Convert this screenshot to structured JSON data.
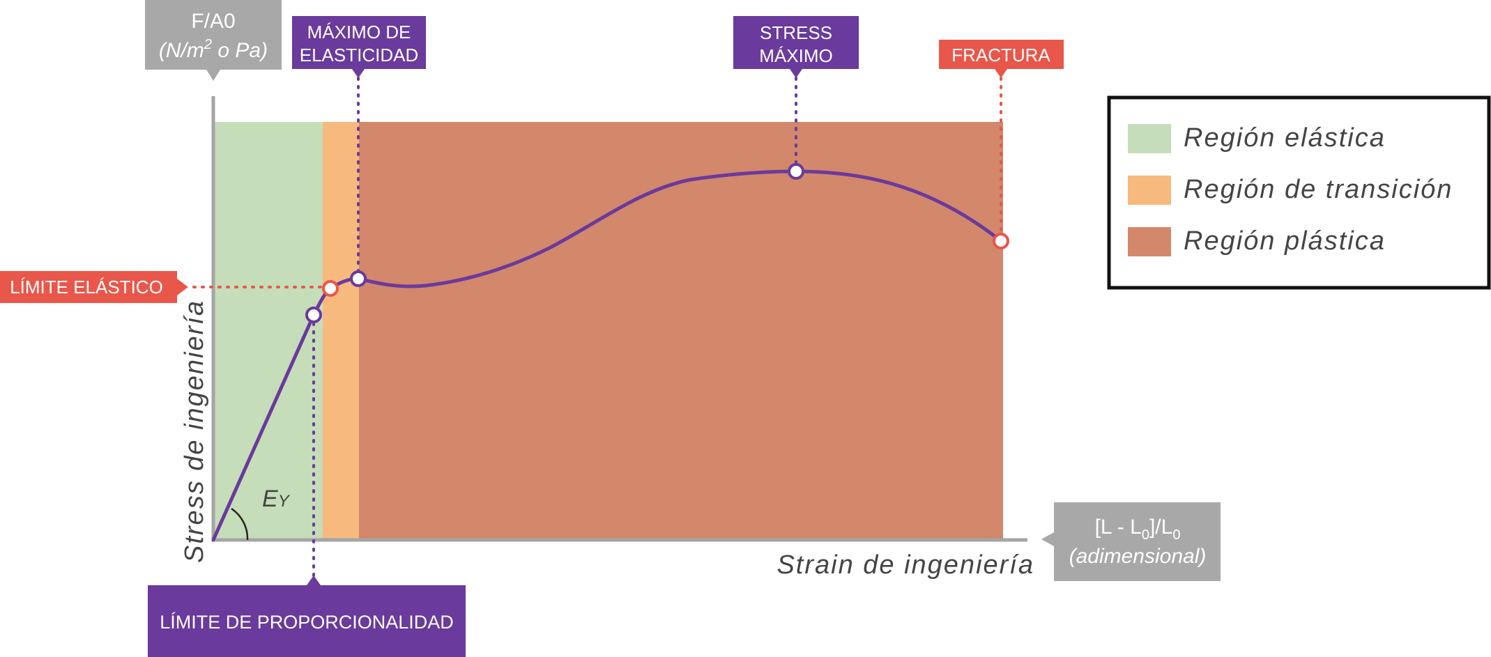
{
  "colors": {
    "elastic": "#c5ddb9",
    "transition": "#f7b97e",
    "plastic": "#d3876b",
    "curve": "#6a3a9c",
    "purple_box": "#6a3a9c",
    "red_box": "#e8574a",
    "gray_box": "#a8a8a8",
    "axis": "#a5a5a5"
  },
  "y_unit_box": {
    "line1": "F/A0",
    "line2_prefix": "(N/m",
    "line2_sup": "2",
    "line2_suffix": " o Pa)"
  },
  "x_unit_box": {
    "line1_a": "[L - L",
    "line1_sub1": "0",
    "line1_b": "]/L",
    "line1_sub2": "0",
    "line2": "(adimensional)"
  },
  "axes": {
    "xlabel": "Strain de ingeniería",
    "ylabel": "Stress de ingeniería"
  },
  "angle_label": {
    "main": "E",
    "sub": "Y"
  },
  "markers": {
    "max_elasticity": {
      "line1": "MÁXIMO DE",
      "line2": "ELASTICIDAD"
    },
    "max_stress": {
      "line1": "STRESS",
      "line2": "MÁXIMO"
    },
    "fracture": "FRACTURA",
    "elastic_limit": "LÍMITE ELÁSTICO",
    "proportionality_limit": "LÍMITE DE PROPORCIONALIDAD"
  },
  "legend": [
    {
      "label": "Región elástica",
      "color": "#c5ddb9"
    },
    {
      "label": "Región de transición",
      "color": "#f7b97e"
    },
    {
      "label": "Región plástica",
      "color": "#d3876b"
    }
  ]
}
